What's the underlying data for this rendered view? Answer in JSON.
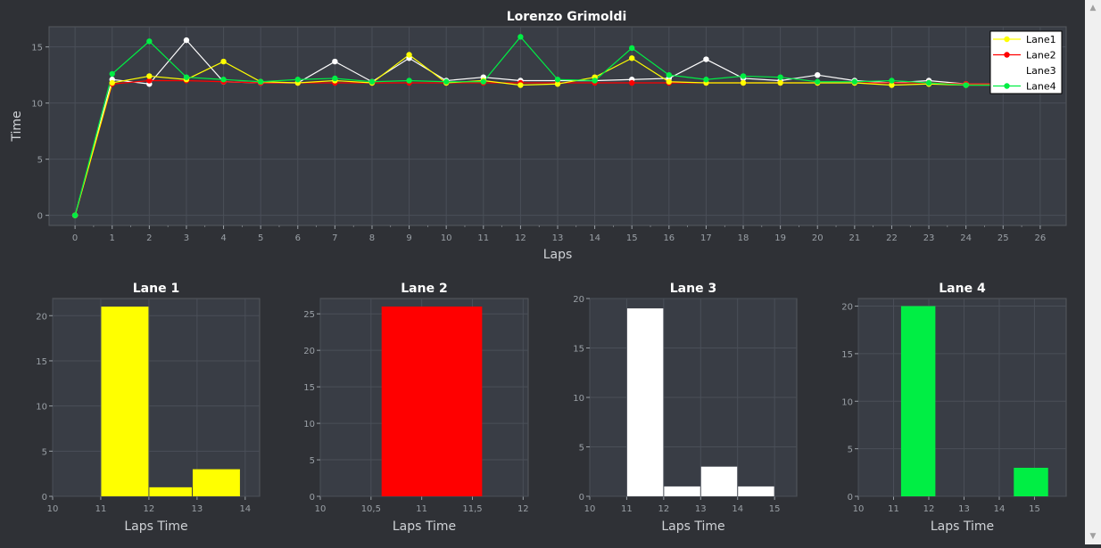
{
  "colors": {
    "background": "#2f3136",
    "plot_bg": "#393d45",
    "grid": "#4a4f58",
    "axis_text": "#9aa0a6",
    "title_text": "#ffffff",
    "label_text": "#cfd2d6",
    "lane1": "#ffff00",
    "lane2": "#ff0000",
    "lane3": "#ffffff",
    "lane4": "#00ee44"
  },
  "chart_data": [
    {
      "type": "line",
      "title": "Lorenzo Grimoldi",
      "xlabel": "Laps",
      "ylabel": "Time",
      "xlim": [
        -0.7,
        26.7
      ],
      "ylim": [
        -0.9,
        16.8
      ],
      "x_ticks": [
        0,
        1,
        2,
        3,
        4,
        5,
        6,
        7,
        8,
        9,
        10,
        11,
        12,
        13,
        14,
        15,
        16,
        17,
        18,
        19,
        20,
        21,
        22,
        23,
        24,
        25,
        26
      ],
      "y_ticks": [
        0,
        5,
        10,
        15
      ],
      "grid": true,
      "legend_position": "top-right",
      "series": [
        {
          "name": "Lane1",
          "color": "#ffff00",
          "x": [
            0,
            1,
            2,
            3,
            4,
            5,
            6,
            7,
            8,
            9,
            10,
            11,
            12,
            13,
            14,
            15,
            16,
            17,
            18,
            19,
            20,
            21,
            22,
            23,
            24,
            25,
            26
          ],
          "y": [
            0,
            11.8,
            12.4,
            12.1,
            13.7,
            11.9,
            11.8,
            12.0,
            11.8,
            14.3,
            11.8,
            12.0,
            11.6,
            11.7,
            12.3,
            14.0,
            11.9,
            11.8,
            11.8,
            11.8,
            11.8,
            11.8,
            11.6,
            11.7,
            11.6,
            11.6,
            11.6
          ]
        },
        {
          "name": "Lane2",
          "color": "#ff0000",
          "x": [
            0,
            1,
            2,
            3,
            4,
            5,
            6,
            7,
            8,
            9,
            10,
            11,
            12,
            13,
            14,
            15,
            16,
            17,
            18,
            19,
            20,
            21,
            22,
            23,
            24,
            25,
            26
          ],
          "y": [
            0,
            11.7,
            12.0,
            12.0,
            11.9,
            11.8,
            11.8,
            11.8,
            11.8,
            11.8,
            11.8,
            11.8,
            11.8,
            11.8,
            11.8,
            11.8,
            11.8,
            11.8,
            11.8,
            11.8,
            11.8,
            11.8,
            11.8,
            11.8,
            11.7,
            11.7,
            11.7
          ]
        },
        {
          "name": "Lane3",
          "color": "#ffffff",
          "x": [
            0,
            1,
            2,
            3,
            4,
            5,
            6,
            7,
            8,
            9,
            10,
            11,
            12,
            13,
            14,
            15,
            16,
            17,
            18,
            19,
            20,
            21,
            22,
            23,
            24,
            25,
            26
          ],
          "y": [
            0,
            12.1,
            11.7,
            15.6,
            11.9,
            11.8,
            11.8,
            13.7,
            11.9,
            14.0,
            12.0,
            12.3,
            12.0,
            12.0,
            12.0,
            12.1,
            12.2,
            13.9,
            12.2,
            12.0,
            12.5,
            12.0,
            11.8,
            12.0,
            11.7,
            11.7,
            11.7
          ]
        },
        {
          "name": "Lane4",
          "color": "#00ee44",
          "x": [
            0,
            1,
            2,
            3,
            4,
            5,
            6,
            7,
            8,
            9,
            10,
            11,
            12,
            13,
            14,
            15,
            16,
            17,
            18,
            19,
            20,
            21,
            22,
            23,
            24,
            25,
            26
          ],
          "y": [
            0,
            12.6,
            15.5,
            12.3,
            12.1,
            11.9,
            12.1,
            12.2,
            11.9,
            12.0,
            11.9,
            11.9,
            15.9,
            12.1,
            12.0,
            14.9,
            12.5,
            12.1,
            12.4,
            12.3,
            11.9,
            11.9,
            12.0,
            11.8,
            11.6,
            11.6,
            11.6
          ]
        }
      ]
    },
    {
      "type": "bar",
      "title": "Lane 1",
      "xlabel": "Laps Time",
      "ylabel": "",
      "color": "#ffff00",
      "xlim": [
        10,
        14.3
      ],
      "ylim": [
        0,
        21.9
      ],
      "x_ticks": [
        "10",
        "11",
        "12",
        "13",
        "14"
      ],
      "x_tick_values": [
        10,
        11,
        12,
        13,
        14
      ],
      "y_ticks": [
        0,
        5,
        10,
        15,
        20
      ],
      "bins": [
        {
          "x0": 11.0,
          "x1": 12.0,
          "value": 21
        },
        {
          "x0": 12.0,
          "x1": 12.9,
          "value": 1
        },
        {
          "x0": 12.9,
          "x1": 13.9,
          "value": 3
        }
      ]
    },
    {
      "type": "bar",
      "title": "Lane 2",
      "xlabel": "Laps Time",
      "ylabel": "",
      "color": "#ff0000",
      "xlim": [
        10,
        12.05
      ],
      "ylim": [
        0,
        27.1
      ],
      "x_ticks": [
        "10",
        "10,5",
        "11",
        "11,5",
        "12"
      ],
      "x_tick_values": [
        10,
        10.5,
        11,
        11.5,
        12
      ],
      "y_ticks": [
        0,
        5,
        10,
        15,
        20,
        25
      ],
      "bins": [
        {
          "x0": 10.6,
          "x1": 11.6,
          "value": 26
        }
      ]
    },
    {
      "type": "bar",
      "title": "Lane 3",
      "xlabel": "Laps Time",
      "ylabel": "",
      "color": "#ffffff",
      "xlim": [
        10,
        15.6
      ],
      "ylim": [
        0,
        20
      ],
      "x_ticks": [
        "10",
        "11",
        "12",
        "13",
        "14",
        "15"
      ],
      "x_tick_values": [
        10,
        11,
        12,
        13,
        14,
        15
      ],
      "y_ticks": [
        0,
        5,
        10,
        15,
        20
      ],
      "bins": [
        {
          "x0": 11.0,
          "x1": 12.0,
          "value": 19
        },
        {
          "x0": 12.0,
          "x1": 13.0,
          "value": 1
        },
        {
          "x0": 13.0,
          "x1": 14.0,
          "value": 3
        },
        {
          "x0": 14.0,
          "x1": 15.0,
          "value": 1
        }
      ]
    },
    {
      "type": "bar",
      "title": "Lane 4",
      "xlabel": "Laps Time",
      "ylabel": "",
      "color": "#00ee44",
      "xlim": [
        10,
        15.9
      ],
      "ylim": [
        0,
        20.8
      ],
      "x_ticks": [
        "10",
        "11",
        "12",
        "13",
        "14",
        "15"
      ],
      "x_tick_values": [
        10,
        11,
        12,
        13,
        14,
        15
      ],
      "y_ticks": [
        0,
        5,
        10,
        15,
        20
      ],
      "bins": [
        {
          "x0": 11.2,
          "x1": 12.2,
          "value": 20
        },
        {
          "x0": 14.4,
          "x1": 15.4,
          "value": 3
        }
      ]
    }
  ]
}
